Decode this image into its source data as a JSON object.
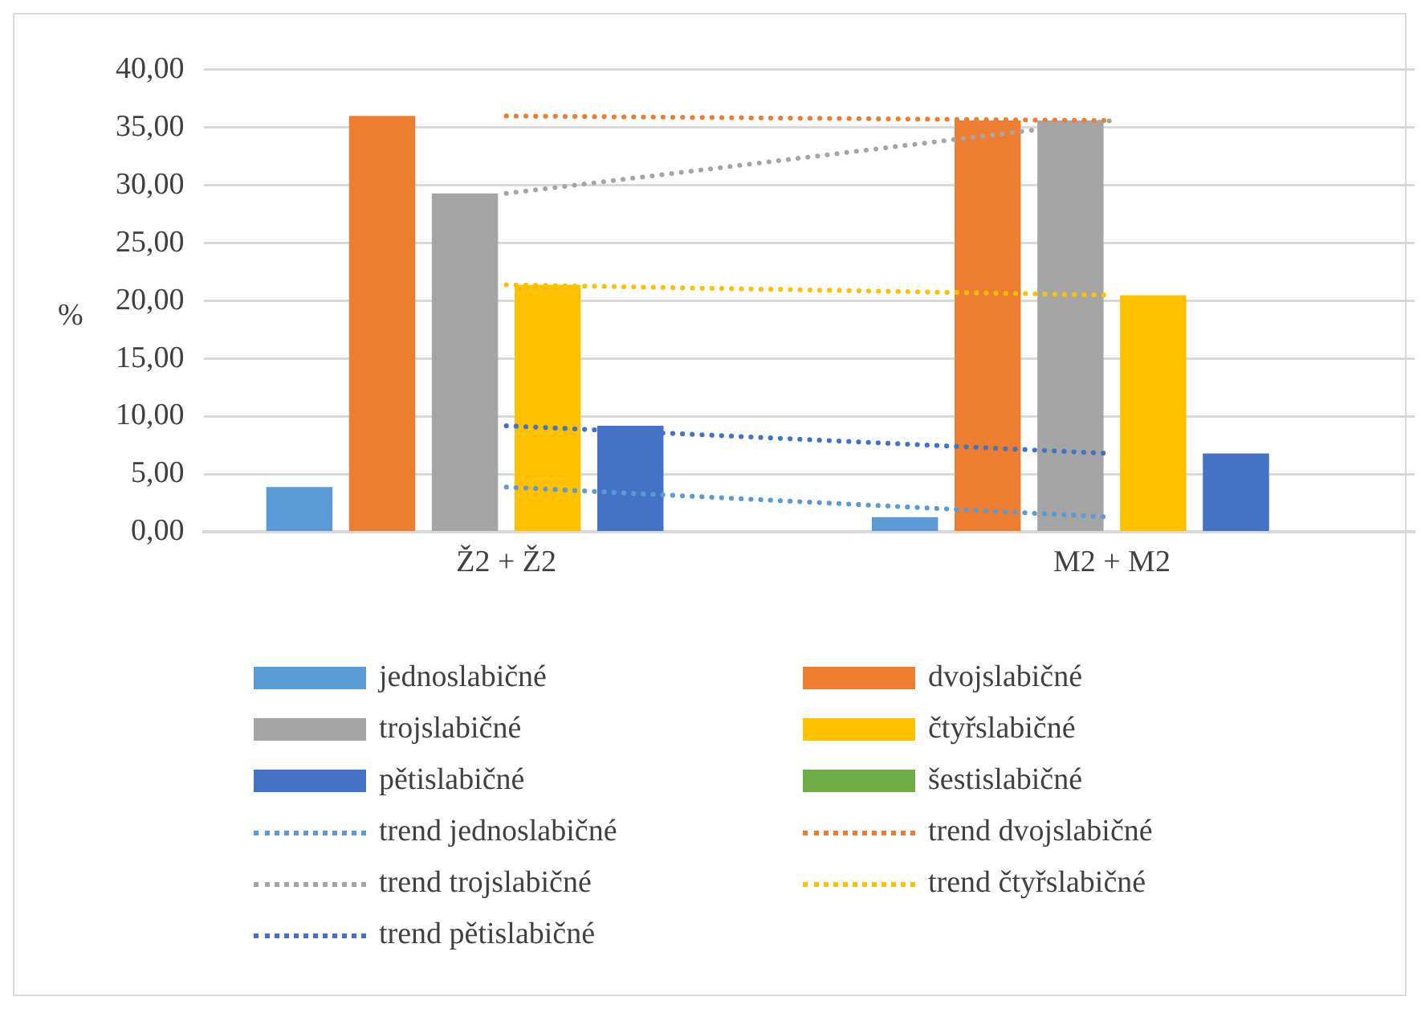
{
  "chart_data": {
    "type": "bar",
    "ylabel": "%",
    "categories": [
      "Ž2 + Ž2",
      "M2 + M2"
    ],
    "series": [
      {
        "name": "jednoslabičné",
        "color": "#5b9bd5",
        "values": [
          3.9,
          1.3
        ]
      },
      {
        "name": "dvojslabičné",
        "color": "#ed7d31",
        "values": [
          36.0,
          35.6
        ]
      },
      {
        "name": "trojslabičné",
        "color": "#a5a5a5",
        "values": [
          29.3,
          35.6
        ]
      },
      {
        "name": "čtyřslabičné",
        "color": "#ffc000",
        "values": [
          21.4,
          20.5
        ]
      },
      {
        "name": "pětislabičné",
        "color": "#4472c4",
        "values": [
          9.2,
          6.8
        ]
      },
      {
        "name": "šestislabičné",
        "color": "#70ad47",
        "values": [
          0,
          0
        ]
      },
      {
        "name": "trend jednoslabičné",
        "type": "line",
        "line_style": "dotted",
        "color": "#5b9bd5",
        "values": [
          3.9,
          1.3
        ]
      },
      {
        "name": "trend dvojslabičné",
        "type": "line",
        "line_style": "dotted",
        "color": "#ed7d31",
        "values": [
          36.0,
          35.6
        ]
      },
      {
        "name": "trend trojslabičné",
        "type": "line",
        "line_style": "dotted",
        "color": "#a5a5a5",
        "values": [
          29.3,
          35.6
        ]
      },
      {
        "name": "trend čtyřslabičné",
        "type": "line",
        "line_style": "dotted",
        "color": "#ffc000",
        "values": [
          21.4,
          20.5
        ]
      },
      {
        "name": "trend pětislabičné",
        "type": "line",
        "line_style": "dotted",
        "color": "#4472c4",
        "values": [
          9.2,
          6.8
        ]
      }
    ],
    "ylim": [
      0,
      40
    ],
    "yticks": [
      {
        "value": 0,
        "label": "0,00"
      },
      {
        "value": 5,
        "label": "5,00"
      },
      {
        "value": 10,
        "label": "10,00"
      },
      {
        "value": 15,
        "label": "15,00"
      },
      {
        "value": 20,
        "label": "20,00"
      },
      {
        "value": 25,
        "label": "25,00"
      },
      {
        "value": 30,
        "label": "30,00"
      },
      {
        "value": 35,
        "label": "35,00"
      },
      {
        "value": 40,
        "label": "40,00"
      }
    ],
    "grid": "y",
    "legend": "bottom",
    "marker": "none"
  }
}
